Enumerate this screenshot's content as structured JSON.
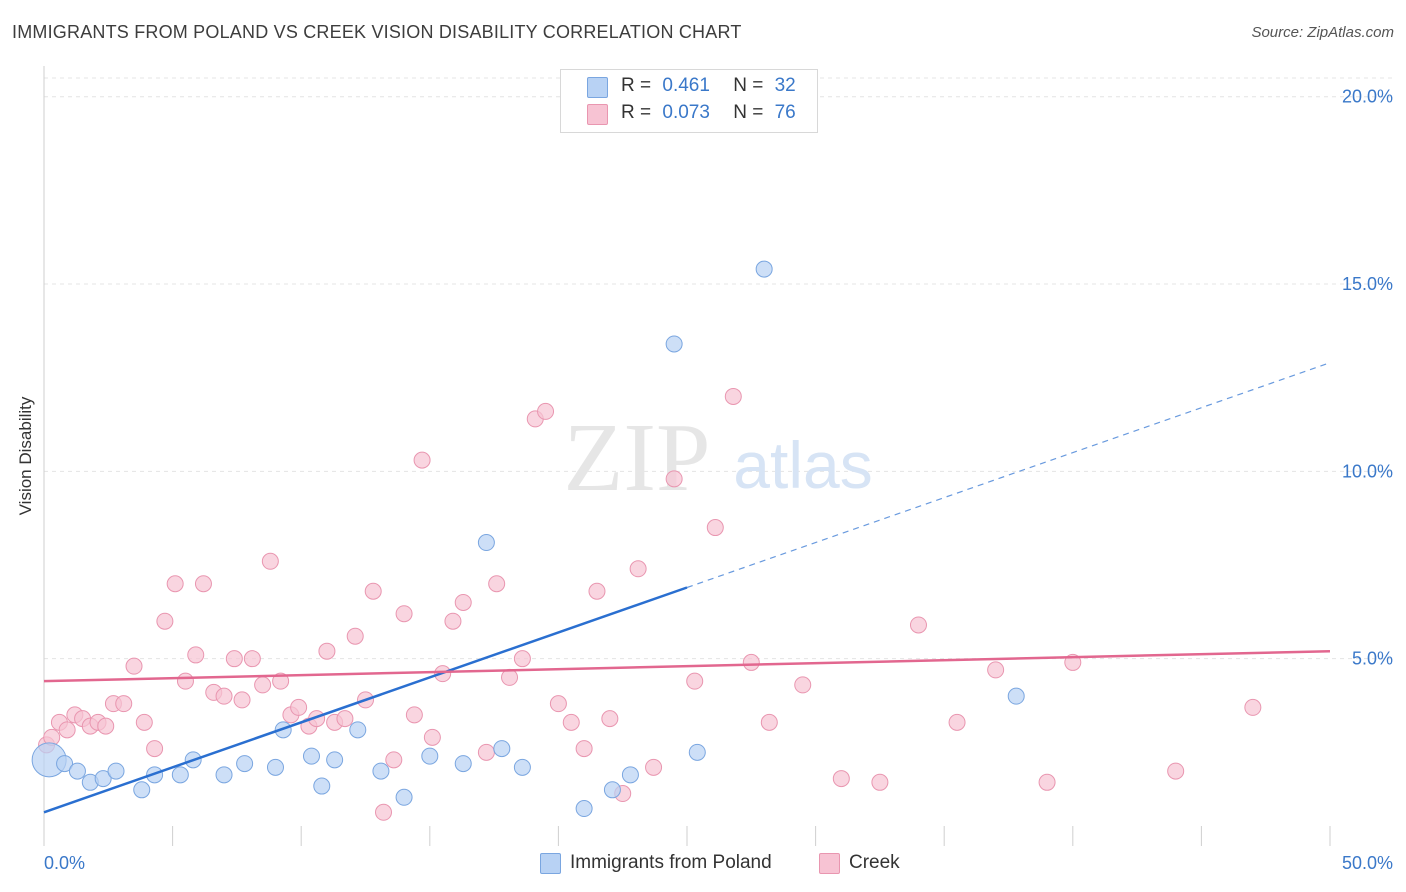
{
  "title": "IMMIGRANTS FROM POLAND VS CREEK VISION DISABILITY CORRELATION CHART",
  "source": "Source: ZipAtlas.com",
  "watermark": {
    "zip": "ZIP",
    "atlas": "atlas"
  },
  "legend": {
    "rows": [
      {
        "r_label": "R =",
        "r_value": "0.461",
        "n_label": "N =",
        "n_value": "32"
      },
      {
        "r_label": "R =",
        "r_value": "0.073",
        "n_label": "N =",
        "n_value": "76"
      }
    ]
  },
  "bottom_legend": {
    "series1": "Immigrants from Poland",
    "series2": "Creek"
  },
  "colors": {
    "blue_fill": "#b8d2f4",
    "blue_stroke": "#7aa6e0",
    "blue_line": "#2a6fd0",
    "pink_fill": "#f7c3d3",
    "pink_stroke": "#e996b0",
    "pink_line": "#e2678f",
    "axis_text": "#3a78c9",
    "grid": "#e4e4e4"
  },
  "chart_data": {
    "type": "scatter",
    "title": "IMMIGRANTS FROM POLAND VS CREEK VISION DISABILITY CORRELATION CHART",
    "xlabel": "",
    "ylabel": "Vision Disability",
    "xlim": [
      0,
      50
    ],
    "ylim": [
      0,
      20.5
    ],
    "x_tick_labels": [
      "0.0%",
      "50.0%"
    ],
    "y_ticks": [
      5,
      10,
      15,
      20
    ],
    "y_tick_labels": [
      "5.0%",
      "10.0%",
      "15.0%",
      "20.0%"
    ],
    "grid": true,
    "legend_position": "top-center",
    "series": [
      {
        "name": "Immigrants from Poland",
        "color": "#b8d2f4",
        "points": [
          [
            0.2,
            2.3
          ],
          [
            0.8,
            2.2
          ],
          [
            1.3,
            2.0
          ],
          [
            1.8,
            1.7
          ],
          [
            2.3,
            1.8
          ],
          [
            2.8,
            2.0
          ],
          [
            3.8,
            1.5
          ],
          [
            4.3,
            1.9
          ],
          [
            5.3,
            1.9
          ],
          [
            5.8,
            2.3
          ],
          [
            7.0,
            1.9
          ],
          [
            7.8,
            2.2
          ],
          [
            9.0,
            2.1
          ],
          [
            9.3,
            3.1
          ],
          [
            10.4,
            2.4
          ],
          [
            10.8,
            1.6
          ],
          [
            11.3,
            2.3
          ],
          [
            12.2,
            3.1
          ],
          [
            13.1,
            2.0
          ],
          [
            14.0,
            1.3
          ],
          [
            15.0,
            2.4
          ],
          [
            16.3,
            2.2
          ],
          [
            17.2,
            8.1
          ],
          [
            17.8,
            2.6
          ],
          [
            18.6,
            2.1
          ],
          [
            21.0,
            1.0
          ],
          [
            22.1,
            1.5
          ],
          [
            22.8,
            1.9
          ],
          [
            24.5,
            13.4
          ],
          [
            25.4,
            2.5
          ],
          [
            28.0,
            15.4
          ],
          [
            37.8,
            4.0
          ]
        ],
        "trend": {
          "x_start": 0,
          "y_start": 0.9,
          "x_end": 25,
          "y_end": 6.9,
          "dashed_to_x": 50,
          "dashed_to_y": 12.9
        }
      },
      {
        "name": "Creek",
        "color": "#f7c3d3",
        "points": [
          [
            0.1,
            2.7
          ],
          [
            0.3,
            2.9
          ],
          [
            0.6,
            3.3
          ],
          [
            0.9,
            3.1
          ],
          [
            1.2,
            3.5
          ],
          [
            1.5,
            3.4
          ],
          [
            1.8,
            3.2
          ],
          [
            2.1,
            3.3
          ],
          [
            2.4,
            3.2
          ],
          [
            2.7,
            3.8
          ],
          [
            3.1,
            3.8
          ],
          [
            3.5,
            4.8
          ],
          [
            3.9,
            3.3
          ],
          [
            4.3,
            2.6
          ],
          [
            4.7,
            6.0
          ],
          [
            5.1,
            7.0
          ],
          [
            5.5,
            4.4
          ],
          [
            5.9,
            5.1
          ],
          [
            6.2,
            7.0
          ],
          [
            6.6,
            4.1
          ],
          [
            7.0,
            4.0
          ],
          [
            7.4,
            5.0
          ],
          [
            7.7,
            3.9
          ],
          [
            8.1,
            5.0
          ],
          [
            8.5,
            4.3
          ],
          [
            8.8,
            7.6
          ],
          [
            9.2,
            4.4
          ],
          [
            9.6,
            3.5
          ],
          [
            9.9,
            3.7
          ],
          [
            10.3,
            3.2
          ],
          [
            10.6,
            3.4
          ],
          [
            11.0,
            5.2
          ],
          [
            11.3,
            3.3
          ],
          [
            11.7,
            3.4
          ],
          [
            12.1,
            5.6
          ],
          [
            12.5,
            3.9
          ],
          [
            12.8,
            6.8
          ],
          [
            13.2,
            0.9
          ],
          [
            13.6,
            2.3
          ],
          [
            14.0,
            6.2
          ],
          [
            14.4,
            3.5
          ],
          [
            14.7,
            10.3
          ],
          [
            15.1,
            2.9
          ],
          [
            15.5,
            4.6
          ],
          [
            15.9,
            6.0
          ],
          [
            16.3,
            6.5
          ],
          [
            17.2,
            2.5
          ],
          [
            17.6,
            7.0
          ],
          [
            18.1,
            4.5
          ],
          [
            18.6,
            5.0
          ],
          [
            19.1,
            11.4
          ],
          [
            19.5,
            11.6
          ],
          [
            20.0,
            3.8
          ],
          [
            20.5,
            3.3
          ],
          [
            21.0,
            2.6
          ],
          [
            21.5,
            6.8
          ],
          [
            22.0,
            3.4
          ],
          [
            22.5,
            1.4
          ],
          [
            23.1,
            7.4
          ],
          [
            23.7,
            2.1
          ],
          [
            24.5,
            9.8
          ],
          [
            25.3,
            4.4
          ],
          [
            26.1,
            8.5
          ],
          [
            26.8,
            12.0
          ],
          [
            27.5,
            4.9
          ],
          [
            28.2,
            3.3
          ],
          [
            29.5,
            4.3
          ],
          [
            31.0,
            1.8
          ],
          [
            32.5,
            1.7
          ],
          [
            34.0,
            5.9
          ],
          [
            35.5,
            3.3
          ],
          [
            37.0,
            4.7
          ],
          [
            39.0,
            1.7
          ],
          [
            40.0,
            4.9
          ],
          [
            44.0,
            2.0
          ],
          [
            47.0,
            3.7
          ]
        ],
        "trend": {
          "x_start": 0,
          "y_start": 4.4,
          "x_end": 50,
          "y_end": 5.2
        }
      }
    ]
  }
}
